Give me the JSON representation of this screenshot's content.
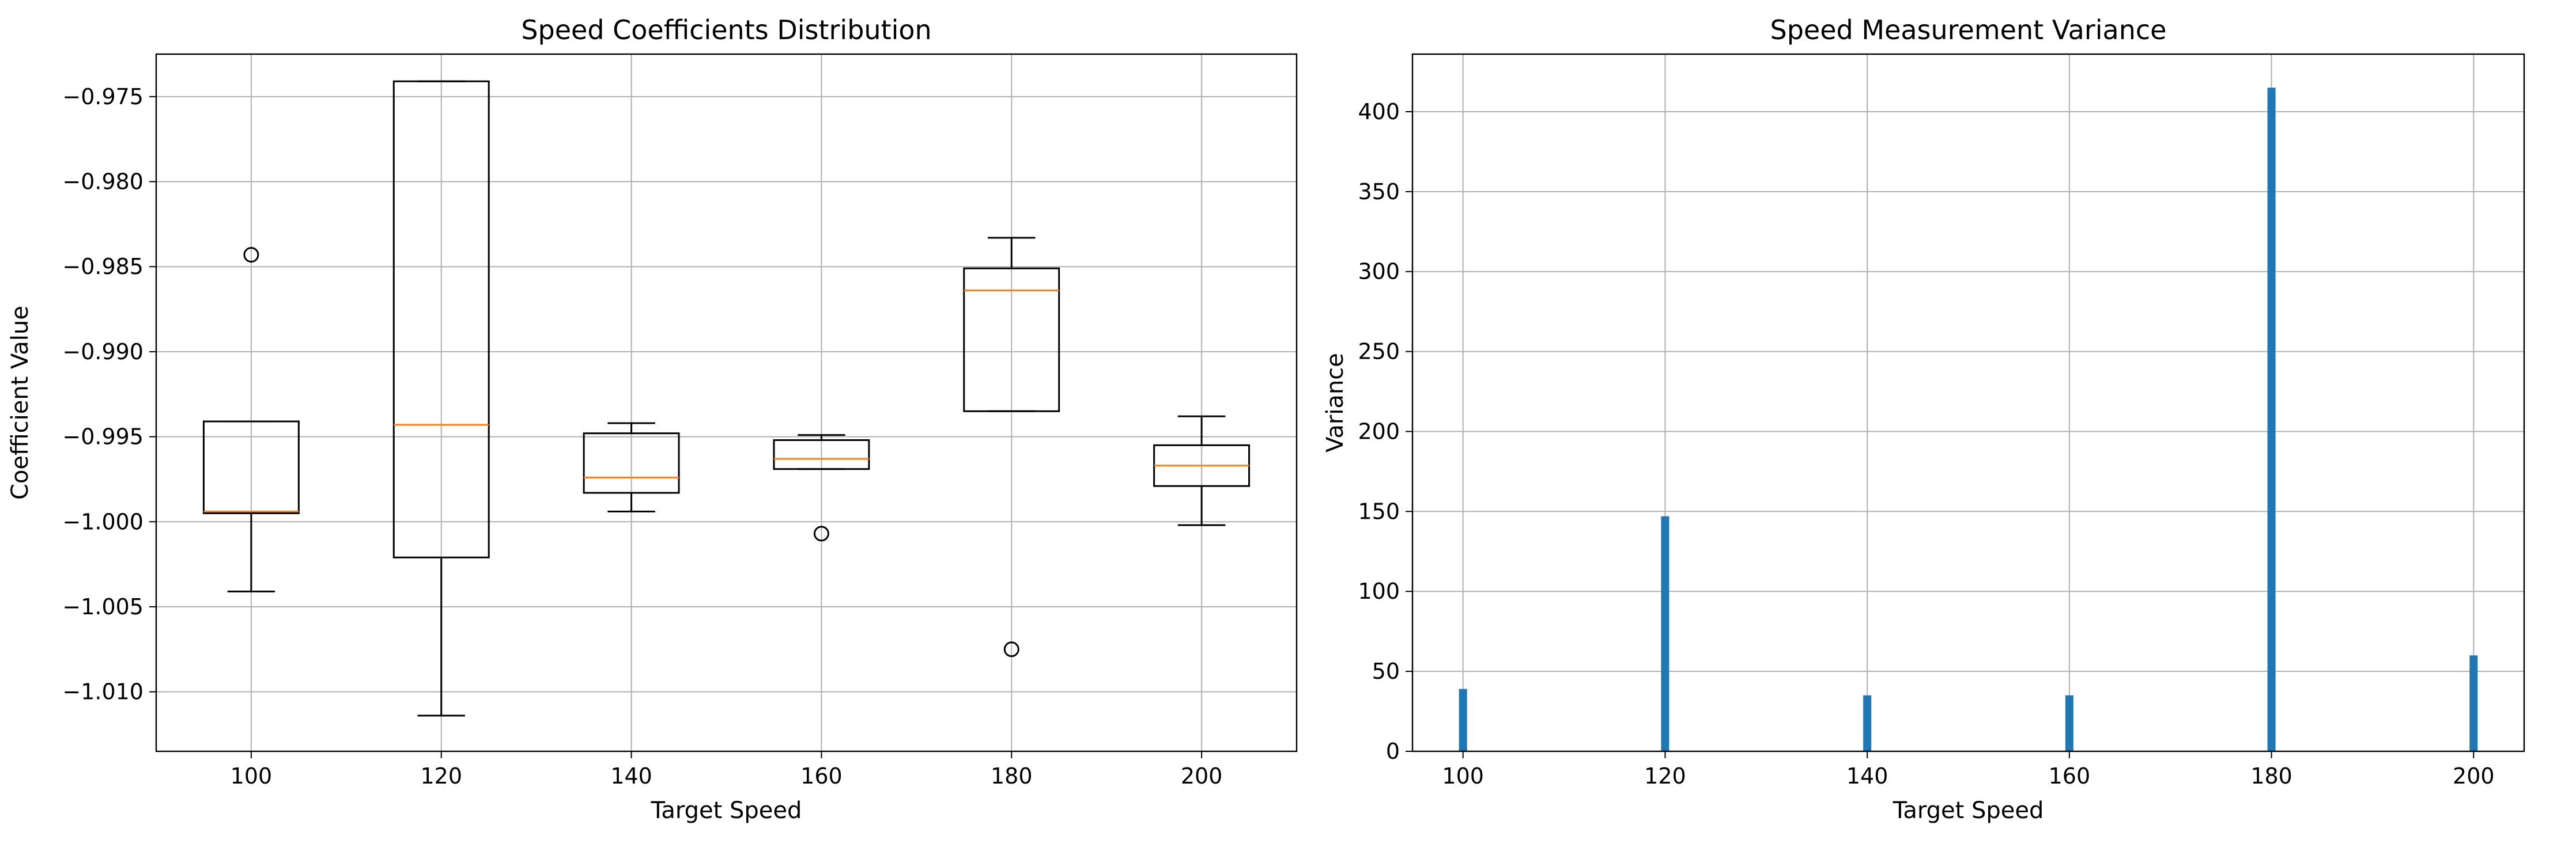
{
  "chart_data": [
    {
      "type": "box",
      "title": "Speed Coefficients Distribution",
      "xlabel": "Target Speed",
      "ylabel": "Coefficient Value",
      "categories": [
        "100",
        "120",
        "140",
        "160",
        "180",
        "200"
      ],
      "ylim": [
        -1.0135,
        -0.9725
      ],
      "yticks": [
        -0.975,
        -0.98,
        -0.985,
        -0.99,
        -0.995,
        -1.0,
        -1.005,
        -1.01
      ],
      "ytick_labels": [
        "−0.975",
        "−0.980",
        "−0.985",
        "−0.990",
        "−0.995",
        "−1.000",
        "−1.005",
        "−1.010"
      ],
      "grid": true,
      "boxes": [
        {
          "whislo": -1.0041,
          "q1": -0.9995,
          "med": -0.9994,
          "q3": -0.9941,
          "whishi": -0.9941,
          "fliers": [
            -0.9843
          ]
        },
        {
          "whislo": -1.0114,
          "q1": -1.0021,
          "med": -0.9943,
          "q3": -0.9741,
          "whishi": -0.9741,
          "fliers": []
        },
        {
          "whislo": -0.9994,
          "q1": -0.9983,
          "med": -0.9974,
          "q3": -0.9948,
          "whishi": -0.9942,
          "fliers": []
        },
        {
          "whislo": -0.9969,
          "q1": -0.9969,
          "med": -0.9963,
          "q3": -0.9952,
          "whishi": -0.9949,
          "fliers": [
            -1.0007
          ]
        },
        {
          "whislo": -0.9935,
          "q1": -0.9935,
          "med": -0.9864,
          "q3": -0.9851,
          "whishi": -0.9833,
          "fliers": [
            -1.0075
          ]
        },
        {
          "whislo": -1.0002,
          "q1": -0.9979,
          "med": -0.9967,
          "q3": -0.9955,
          "whishi": -0.9938,
          "fliers": []
        }
      ],
      "colors": {
        "box": "#000000",
        "median": "#ff7f0e",
        "grid": "#b0b0b0"
      }
    },
    {
      "type": "bar",
      "title": "Speed Measurement Variance",
      "xlabel": "Target Speed",
      "ylabel": "Variance",
      "x": [
        100,
        120,
        140,
        160,
        180,
        200
      ],
      "values": [
        39,
        147,
        35,
        35,
        415,
        60
      ],
      "xticks": [
        100,
        120,
        140,
        160,
        180,
        200
      ],
      "yticks": [
        0,
        50,
        100,
        150,
        200,
        250,
        300,
        350,
        400
      ],
      "xlim": [
        95,
        205
      ],
      "ylim": [
        0,
        436
      ],
      "bar_width": 0.8,
      "grid": true,
      "colors": {
        "bar": "#1f77b4",
        "grid": "#b0b0b0"
      }
    }
  ]
}
